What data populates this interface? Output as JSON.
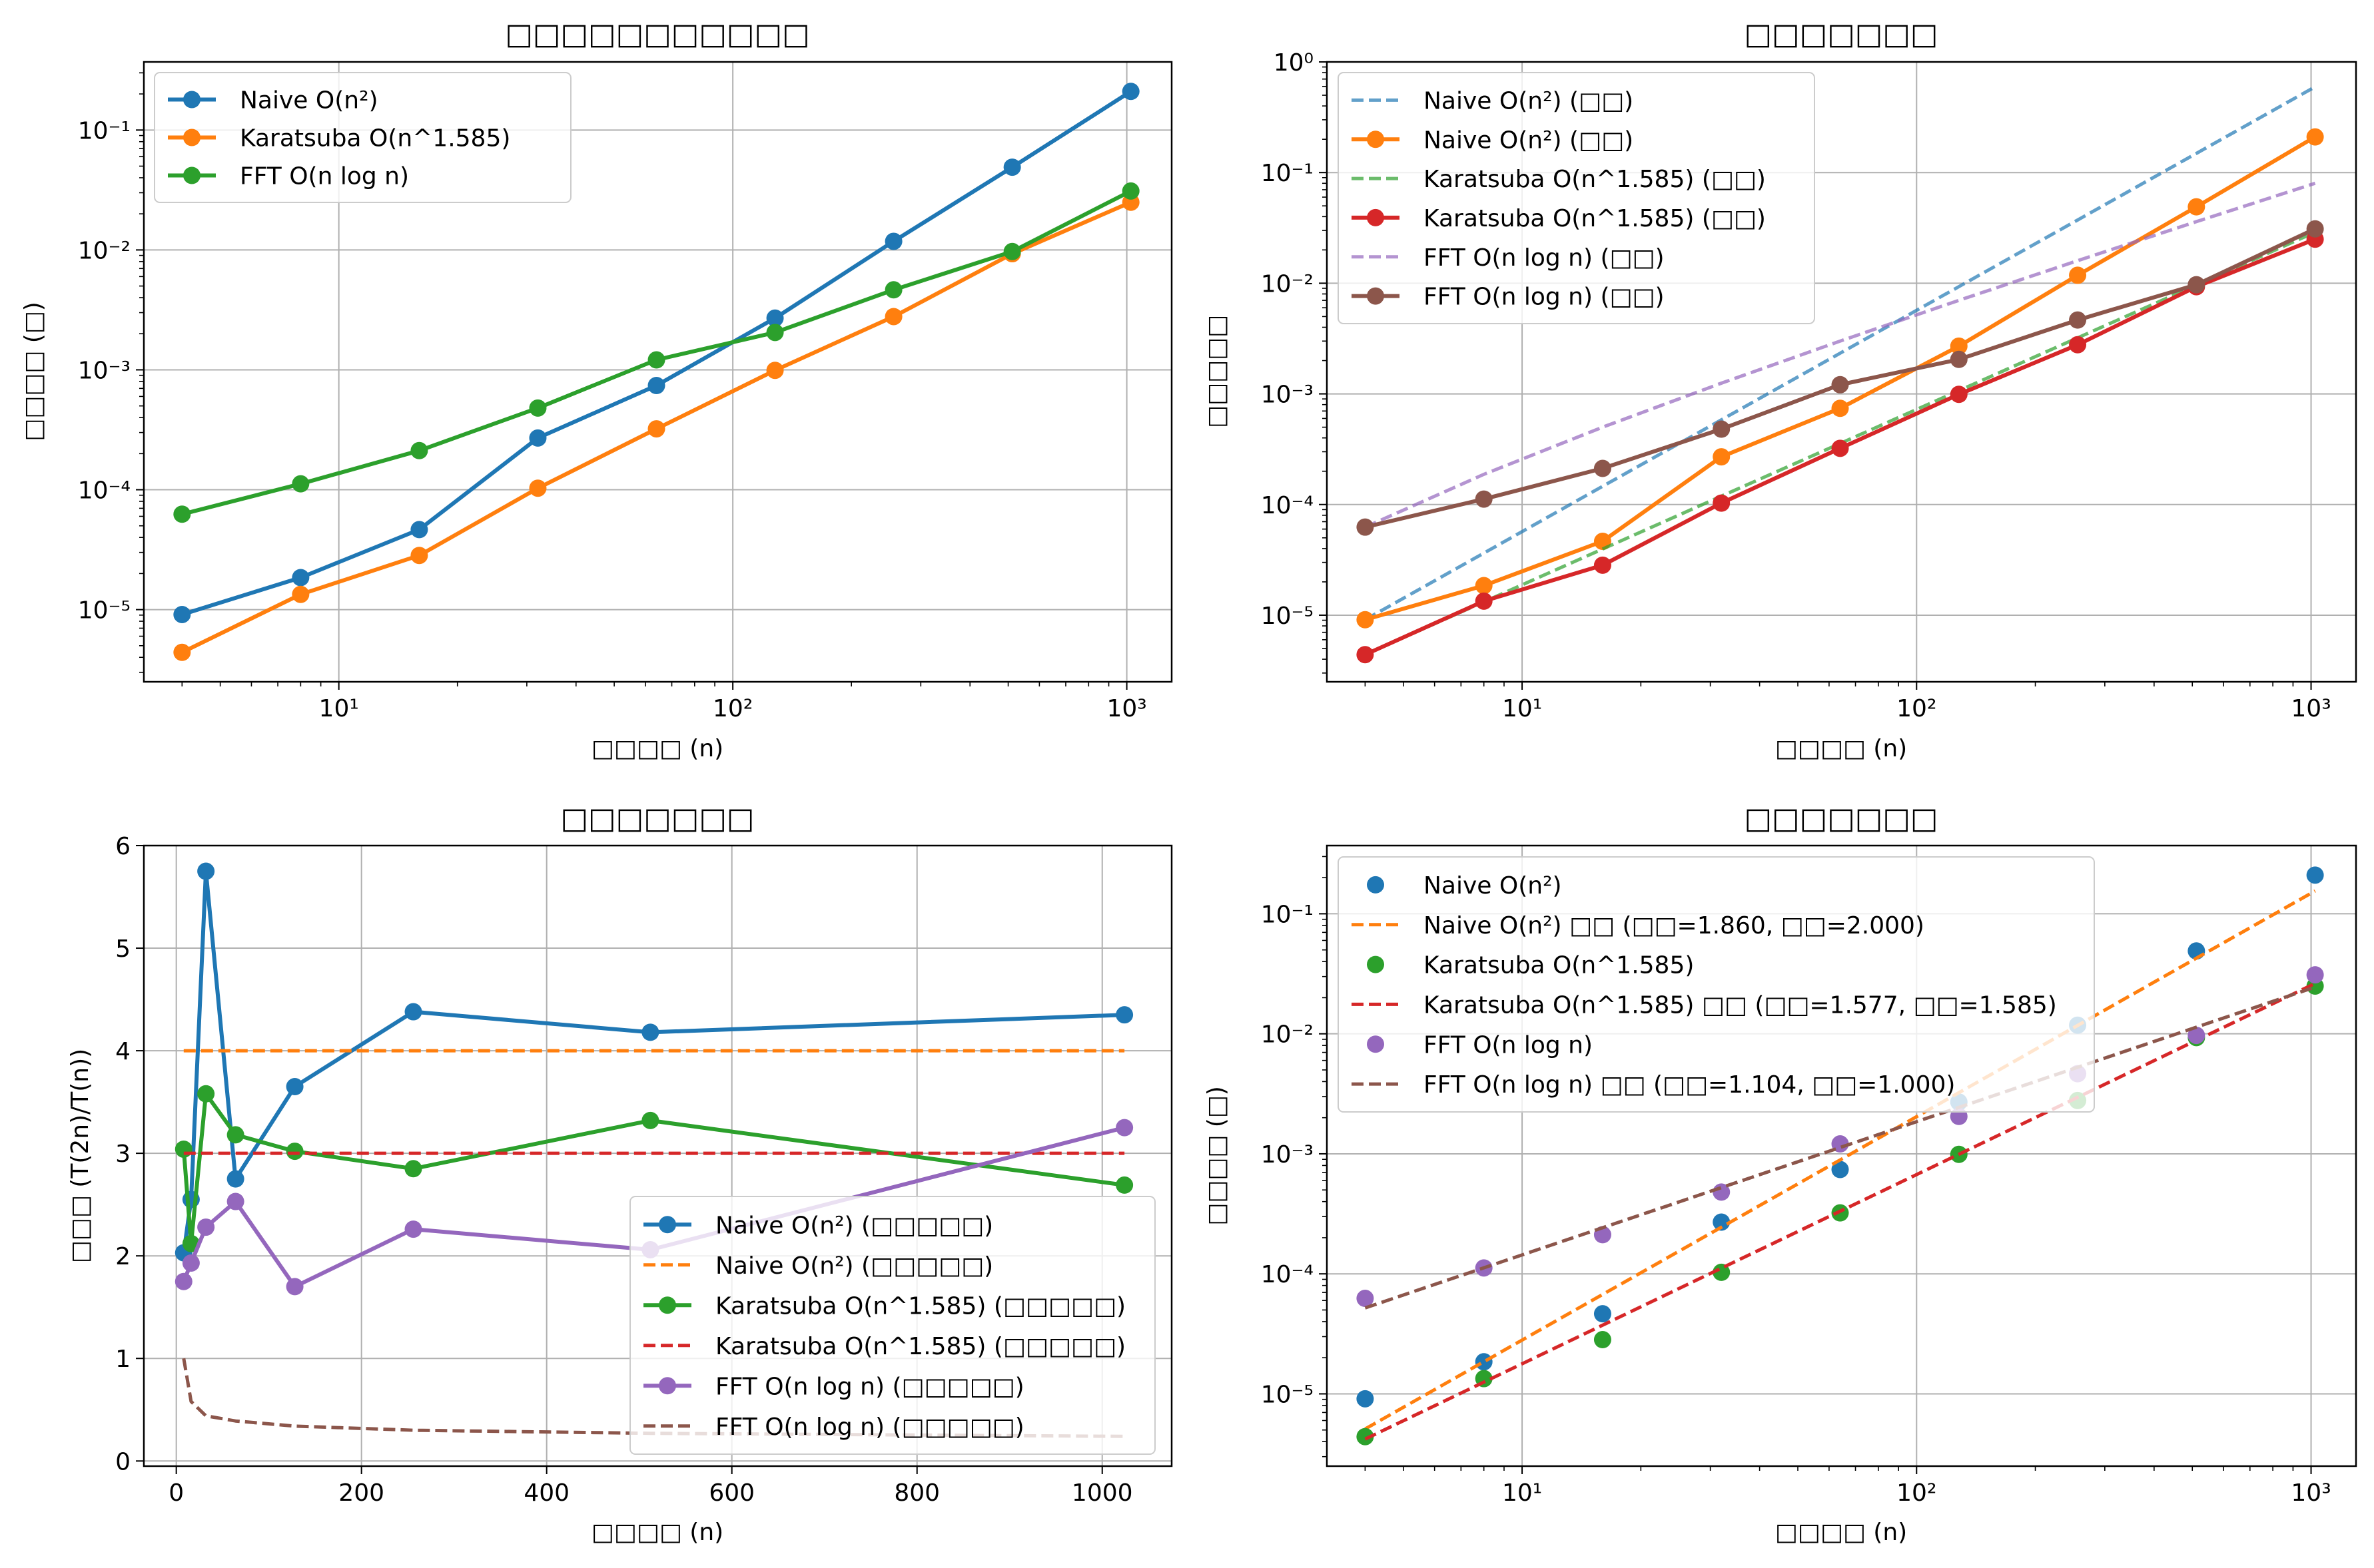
{
  "figure": {
    "colors": {
      "blue": "#1f77b4",
      "orange": "#ff7f0e",
      "green": "#2ca02c",
      "red": "#d62728",
      "purple": "#9467bd",
      "brown": "#8c564b",
      "grid": "#b0b0b0",
      "axis": "#000000"
    }
  },
  "chart_data": [
    {
      "type": "line",
      "title": "□□□□□□□□□□□",
      "xlabel": "□□□□ (n)",
      "ylabel": "□□□□ (□)",
      "xscale": "log",
      "yscale": "log",
      "xlim": [
        3.2,
        1300
      ],
      "ylim": [
        2.5e-06,
        0.37
      ],
      "xticks": [
        {
          "value": 10,
          "label": "10¹"
        },
        {
          "value": 100,
          "label": "10²"
        },
        {
          "value": 1000,
          "label": "10³"
        }
      ],
      "yticks": [
        {
          "value": 1e-05,
          "label": "10⁻⁵"
        },
        {
          "value": 0.0001,
          "label": "10⁻⁴"
        },
        {
          "value": 0.001,
          "label": "10⁻³"
        },
        {
          "value": 0.01,
          "label": "10⁻²"
        },
        {
          "value": 0.1,
          "label": "10⁻¹"
        }
      ],
      "legend_position": "upper-left",
      "series": [
        {
          "name": "Naive O(n²)",
          "color": "#1f77b4",
          "style": "solid",
          "marker": true,
          "x": [
            4,
            8,
            16,
            32,
            64,
            128,
            256,
            512,
            1024
          ],
          "y": [
            9.1e-06,
            1.85e-05,
            4.65e-05,
            0.00027,
            0.00074,
            0.0027,
            0.0118,
            0.049,
            0.21
          ]
        },
        {
          "name": "Karatsuba O(n^1.585)",
          "color": "#ff7f0e",
          "style": "solid",
          "marker": true,
          "x": [
            4,
            8,
            16,
            32,
            64,
            128,
            256,
            512,
            1024
          ],
          "y": [
            4.4e-06,
            1.34e-05,
            2.83e-05,
            0.000103,
            0.000322,
            0.00099,
            0.00278,
            0.0093,
            0.025
          ]
        },
        {
          "name": "FFT O(n log n)",
          "color": "#2ca02c",
          "style": "solid",
          "marker": true,
          "x": [
            4,
            8,
            16,
            32,
            64,
            128,
            256,
            512,
            1024
          ],
          "y": [
            6.25e-05,
            0.000112,
            0.000212,
            0.00048,
            0.00121,
            0.00205,
            0.00465,
            0.0097,
            0.031
          ]
        }
      ]
    },
    {
      "type": "line",
      "title": "□□□□□□□",
      "xlabel": "□□□□ (n)",
      "ylabel": "□□□□□",
      "xscale": "log",
      "yscale": "log",
      "xlim": [
        3.2,
        1300
      ],
      "ylim": [
        2.5e-06,
        1.0
      ],
      "xticks": [
        {
          "value": 10,
          "label": "10¹"
        },
        {
          "value": 100,
          "label": "10²"
        },
        {
          "value": 1000,
          "label": "10³"
        }
      ],
      "yticks": [
        {
          "value": 1e-05,
          "label": "10⁻⁵"
        },
        {
          "value": 0.0001,
          "label": "10⁻⁴"
        },
        {
          "value": 0.001,
          "label": "10⁻³"
        },
        {
          "value": 0.01,
          "label": "10⁻²"
        },
        {
          "value": 0.1,
          "label": "10⁻¹"
        },
        {
          "value": 1,
          "label": "10⁰"
        }
      ],
      "legend_position": "upper-left",
      "series": [
        {
          "name": "Naive O(n²) (□□)",
          "color": "#1f77b4",
          "style": "dashed",
          "marker": false,
          "alpha": 0.7,
          "x": [
            4,
            8,
            16,
            32,
            64,
            128,
            256,
            512,
            1024
          ],
          "y": [
            9.1e-06,
            3.64e-05,
            0.000146,
            0.000582,
            0.00233,
            0.00932,
            0.0373,
            0.149,
            0.596
          ]
        },
        {
          "name": "Naive O(n²) (□□)",
          "color": "#ff7f0e",
          "style": "solid",
          "marker": true,
          "x": [
            4,
            8,
            16,
            32,
            64,
            128,
            256,
            512,
            1024
          ],
          "y": [
            9.1e-06,
            1.85e-05,
            4.65e-05,
            0.00027,
            0.00074,
            0.0027,
            0.0118,
            0.049,
            0.21
          ]
        },
        {
          "name": "Karatsuba O(n^1.585) (□□)",
          "color": "#2ca02c",
          "style": "dashed",
          "marker": false,
          "alpha": 0.7,
          "x": [
            4,
            8,
            16,
            32,
            64,
            128,
            256,
            512,
            1024
          ],
          "y": [
            4.4e-06,
            1.32e-05,
            3.96e-05,
            0.000119,
            0.000356,
            0.00107,
            0.00321,
            0.00962,
            0.0289
          ]
        },
        {
          "name": "Karatsuba O(n^1.585) (□□)",
          "color": "#d62728",
          "style": "solid",
          "marker": true,
          "x": [
            4,
            8,
            16,
            32,
            64,
            128,
            256,
            512,
            1024
          ],
          "y": [
            4.4e-06,
            1.34e-05,
            2.83e-05,
            0.000103,
            0.000322,
            0.00099,
            0.00278,
            0.0093,
            0.025
          ]
        },
        {
          "name": "FFT O(n log n) (□□)",
          "color": "#9467bd",
          "style": "dashed",
          "marker": false,
          "alpha": 0.7,
          "x": [
            4,
            8,
            16,
            32,
            64,
            128,
            256,
            512,
            1024
          ],
          "y": [
            6.25e-05,
            0.0001875,
            0.0005,
            0.00125,
            0.003,
            0.007,
            0.016,
            0.036,
            0.08
          ]
        },
        {
          "name": "FFT O(n log n) (□□)",
          "color": "#8c564b",
          "style": "solid",
          "marker": true,
          "x": [
            4,
            8,
            16,
            32,
            64,
            128,
            256,
            512,
            1024
          ],
          "y": [
            6.25e-05,
            0.000112,
            0.000212,
            0.00048,
            0.00121,
            0.00205,
            0.00465,
            0.0097,
            0.031
          ]
        }
      ]
    },
    {
      "type": "line",
      "title": "□□□□□□□",
      "xlabel": "□□□□ (n)",
      "ylabel": "□□□ (T(2n)/T(n))",
      "xscale": "linear",
      "yscale": "linear",
      "xlim": [
        -35,
        1075
      ],
      "ylim": [
        -0.05,
        6.0
      ],
      "xticks": [
        {
          "value": 0,
          "label": "0"
        },
        {
          "value": 200,
          "label": "200"
        },
        {
          "value": 400,
          "label": "400"
        },
        {
          "value": 600,
          "label": "600"
        },
        {
          "value": 800,
          "label": "800"
        },
        {
          "value": 1000,
          "label": "1000"
        }
      ],
      "yticks": [
        {
          "value": 0,
          "label": "0"
        },
        {
          "value": 1,
          "label": "1"
        },
        {
          "value": 2,
          "label": "2"
        },
        {
          "value": 3,
          "label": "3"
        },
        {
          "value": 4,
          "label": "4"
        },
        {
          "value": 5,
          "label": "5"
        },
        {
          "value": 6,
          "label": "6"
        }
      ],
      "legend_position": "lower-right",
      "series": [
        {
          "name": "Naive O(n²) (□□□□□)",
          "color": "#1f77b4",
          "style": "solid",
          "marker": true,
          "x": [
            8,
            16,
            32,
            64,
            128,
            256,
            512,
            1024
          ],
          "y": [
            2.03,
            2.55,
            5.75,
            2.75,
            3.65,
            4.38,
            4.18,
            4.35
          ]
        },
        {
          "name": "Naive O(n²) (□□□□□)",
          "color": "#ff7f0e",
          "style": "dashed",
          "marker": false,
          "x": [
            8,
            1024
          ],
          "y": [
            4.0,
            4.0
          ]
        },
        {
          "name": "Karatsuba O(n^1.585) (□□□□□)",
          "color": "#2ca02c",
          "style": "solid",
          "marker": true,
          "x": [
            8,
            16,
            32,
            64,
            128,
            256,
            512,
            1024
          ],
          "y": [
            3.04,
            2.12,
            3.58,
            3.18,
            3.02,
            2.85,
            3.32,
            2.69
          ]
        },
        {
          "name": "Karatsuba O(n^1.585) (□□□□□)",
          "color": "#d62728",
          "style": "dashed",
          "marker": false,
          "x": [
            8,
            1024
          ],
          "y": [
            3.0,
            3.0
          ]
        },
        {
          "name": "FFT O(n log n) (□□□□□)",
          "color": "#9467bd",
          "style": "solid",
          "marker": true,
          "x": [
            8,
            16,
            32,
            64,
            128,
            256,
            512,
            1024
          ],
          "y": [
            1.75,
            1.93,
            2.28,
            2.53,
            1.7,
            2.26,
            2.06,
            3.25
          ]
        },
        {
          "name": "FFT O(n log n) (□□□□□)",
          "color": "#8c564b",
          "style": "dashed",
          "marker": false,
          "x": [
            8,
            16,
            32,
            64,
            128,
            256,
            512,
            1024
          ],
          "y": [
            1.0,
            0.58,
            0.44,
            0.39,
            0.34,
            0.3,
            0.27,
            0.24
          ]
        }
      ]
    },
    {
      "type": "scatter",
      "title": "□□□□□□□",
      "xlabel": "□□□□ (n)",
      "ylabel": "□□□□ (□)",
      "xscale": "log",
      "yscale": "log",
      "xlim": [
        3.2,
        1300
      ],
      "ylim": [
        2.5e-06,
        0.37
      ],
      "xticks": [
        {
          "value": 10,
          "label": "10¹"
        },
        {
          "value": 100,
          "label": "10²"
        },
        {
          "value": 1000,
          "label": "10³"
        }
      ],
      "yticks": [
        {
          "value": 1e-05,
          "label": "10⁻⁵"
        },
        {
          "value": 0.0001,
          "label": "10⁻⁴"
        },
        {
          "value": 0.001,
          "label": "10⁻³"
        },
        {
          "value": 0.01,
          "label": "10⁻²"
        },
        {
          "value": 0.1,
          "label": "10⁻¹"
        }
      ],
      "legend_position": "upper-left",
      "series": [
        {
          "name": "Naive O(n²)",
          "color": "#1f77b4",
          "style": "points",
          "marker": true,
          "x": [
            4,
            8,
            16,
            32,
            64,
            128,
            256,
            512,
            1024
          ],
          "y": [
            9.1e-06,
            1.85e-05,
            4.65e-05,
            0.00027,
            0.00074,
            0.0027,
            0.0118,
            0.049,
            0.21
          ]
        },
        {
          "name": "Naive O(n²) □□ (□□=1.860, □□=2.000)",
          "color": "#ff7f0e",
          "style": "dashed",
          "marker": false,
          "x": [
            4,
            1024
          ],
          "y": [
            5.1e-06,
            0.155
          ]
        },
        {
          "name": "Karatsuba O(n^1.585)",
          "color": "#2ca02c",
          "style": "points",
          "marker": true,
          "x": [
            4,
            8,
            16,
            32,
            64,
            128,
            256,
            512,
            1024
          ],
          "y": [
            4.4e-06,
            1.34e-05,
            2.83e-05,
            0.000103,
            0.000322,
            0.00099,
            0.00278,
            0.0093,
            0.025
          ]
        },
        {
          "name": "Karatsuba O(n^1.585) □□ (□□=1.577, □□=1.585)",
          "color": "#d62728",
          "style": "dashed",
          "marker": false,
          "x": [
            4,
            1024
          ],
          "y": [
            4.2e-06,
            0.0263
          ]
        },
        {
          "name": "FFT O(n log n)",
          "color": "#9467bd",
          "style": "points",
          "marker": true,
          "x": [
            4,
            8,
            16,
            32,
            64,
            128,
            256,
            512,
            1024
          ],
          "y": [
            6.25e-05,
            0.000112,
            0.000212,
            0.00048,
            0.00121,
            0.00205,
            0.00465,
            0.0097,
            0.031
          ]
        },
        {
          "name": "FFT O(n log n) □□ (□□=1.104, □□=1.000)",
          "color": "#8c564b",
          "style": "dashed",
          "marker": false,
          "x": [
            4,
            1024
          ],
          "y": [
            5.2e-05,
            0.0245
          ]
        }
      ]
    }
  ]
}
